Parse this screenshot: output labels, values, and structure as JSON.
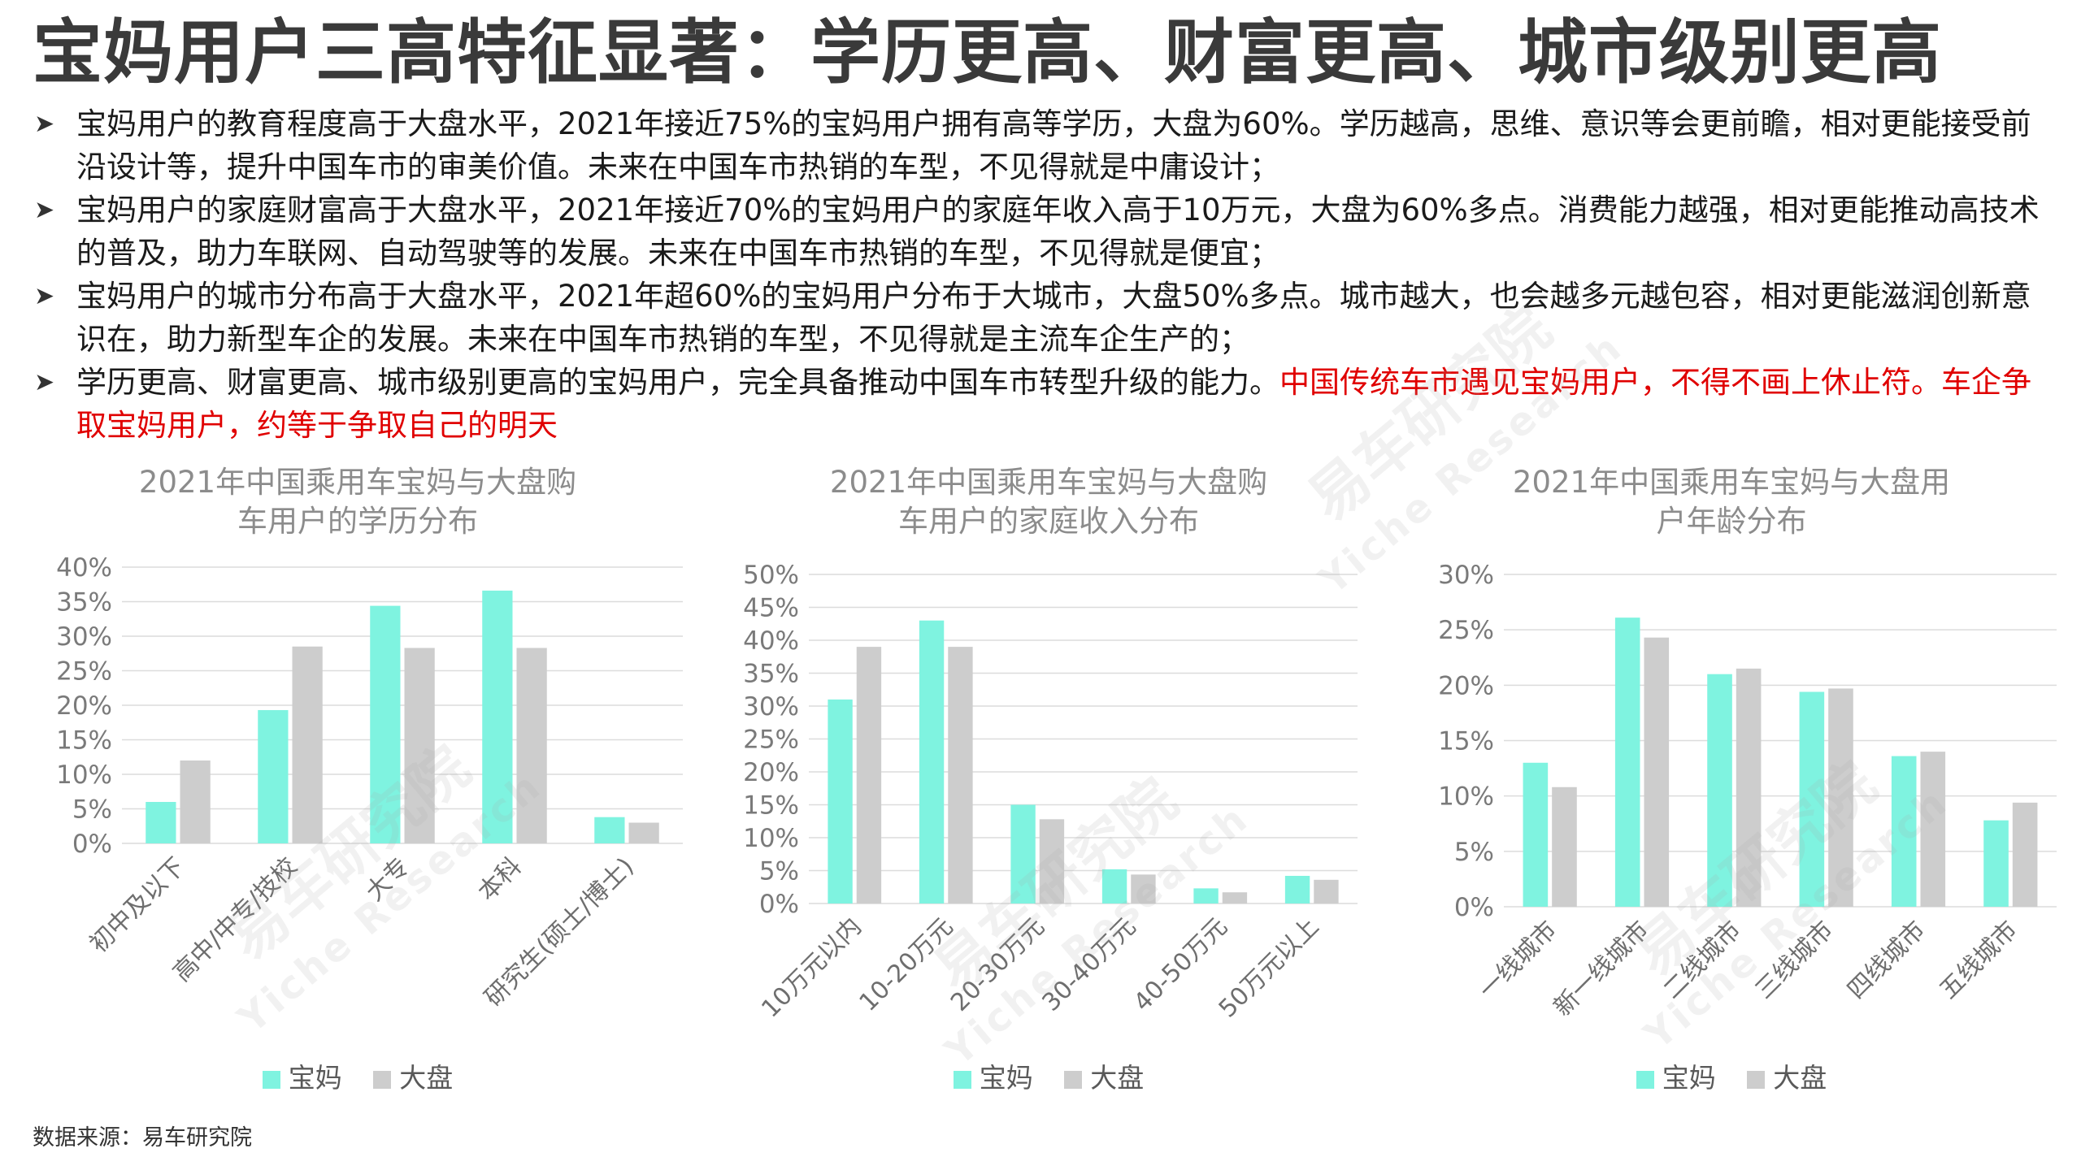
{
  "title": "宝妈用户三高特征显著：学历更高、财富更高、城市级别更高",
  "bullets": [
    {
      "text": "宝妈用户的教育程度高于大盘水平，2021年接近75%的宝妈用户拥有高等学历，大盘为60%。学历越高，思维、意识等会更前瞻，相对更能接受前沿设计等，提升中国车市的审美价值。未来在中国车市热销的车型，不见得就是中庸设计；",
      "highlight": ""
    },
    {
      "text": "宝妈用户的家庭财富高于大盘水平，2021年接近70%的宝妈用户的家庭年收入高于10万元，大盘为60%多点。消费能力越强，相对更能推动高技术的普及，助力车联网、自动驾驶等的发展。未来在中国车市热销的车型，不见得就是便宜；",
      "highlight": ""
    },
    {
      "text": "宝妈用户的城市分布高于大盘水平，2021年超60%的宝妈用户分布于大城市，大盘50%多点。城市越大，也会越多元越包容，相对更能滋润创新意识在，助力新型车企的发展。未来在中国车市热销的车型，不见得就是主流车企生产的；",
      "highlight": ""
    },
    {
      "text": "学历更高、财富更高、城市级别更高的宝妈用户，完全具备推动中国车市转型升级的能力。",
      "highlight": "中国传统车市遇见宝妈用户，不得不画上休止符。车企争取宝妈用户，约等于争取自己的明天"
    }
  ],
  "bullet_icon": "arrow-right-icon",
  "colors": {
    "baoma": "#7ff3e0",
    "dapan": "#cdcdcd",
    "highlight": "#e00000"
  },
  "legend": {
    "baoma": "宝妈",
    "dapan": "大盘"
  },
  "source": "数据来源：易车研究院",
  "watermark": {
    "cn": "易车研究院",
    "en": "Yiche Research"
  },
  "chart_data": [
    {
      "type": "bar",
      "title_lines": [
        "2021年中国乘用车宝妈与大盘购",
        "车用户的学历分布"
      ],
      "categories": [
        "初中及以下",
        "高中/中专/技校",
        "大专",
        "本科",
        "研究生(硕士/博士)"
      ],
      "series": [
        {
          "name": "宝妈",
          "values": [
            6,
            19.3,
            34.4,
            36.6,
            3.8
          ]
        },
        {
          "name": "大盘",
          "values": [
            12,
            28.5,
            28.3,
            28.3,
            3.0
          ]
        }
      ],
      "y_ticks": [
        "0%",
        "5%",
        "10%",
        "15%",
        "20%",
        "25%",
        "30%",
        "35%",
        "40%"
      ],
      "ylim": [
        0,
        40
      ],
      "grid": true,
      "legend_position": "bottom"
    },
    {
      "type": "bar",
      "title_lines": [
        "2021年中国乘用车宝妈与大盘购",
        "车用户的家庭收入分布"
      ],
      "categories": [
        "10万元以内",
        "10-20万元",
        "20-30万元",
        "30-40万元",
        "40-50万元",
        "50万元以上"
      ],
      "series": [
        {
          "name": "宝妈",
          "values": [
            31,
            43,
            15,
            5.2,
            2.3,
            4.2
          ]
        },
        {
          "name": "大盘",
          "values": [
            39,
            39,
            12.8,
            4.4,
            1.7,
            3.6
          ]
        }
      ],
      "y_ticks": [
        "0%",
        "5%",
        "10%",
        "15%",
        "20%",
        "25%",
        "30%",
        "35%",
        "40%",
        "45%",
        "50%"
      ],
      "ylim": [
        0,
        50
      ],
      "grid": true,
      "legend_position": "bottom"
    },
    {
      "type": "bar",
      "title_lines": [
        "2021年中国乘用车宝妈与大盘用",
        "户年龄分布"
      ],
      "categories": [
        "一线城市",
        "新一线城市",
        "二线城市",
        "三线城市",
        "四线城市",
        "五线城市"
      ],
      "series": [
        {
          "name": "宝妈",
          "values": [
            13,
            26.1,
            21,
            19.4,
            13.6,
            7.8
          ]
        },
        {
          "name": "大盘",
          "values": [
            10.8,
            24.3,
            21.5,
            19.7,
            14,
            9.4
          ]
        }
      ],
      "y_ticks": [
        "0%",
        "5%",
        "10%",
        "15%",
        "20%",
        "25%",
        "30%"
      ],
      "ylim": [
        0,
        30
      ],
      "grid": true,
      "legend_position": "bottom"
    }
  ]
}
